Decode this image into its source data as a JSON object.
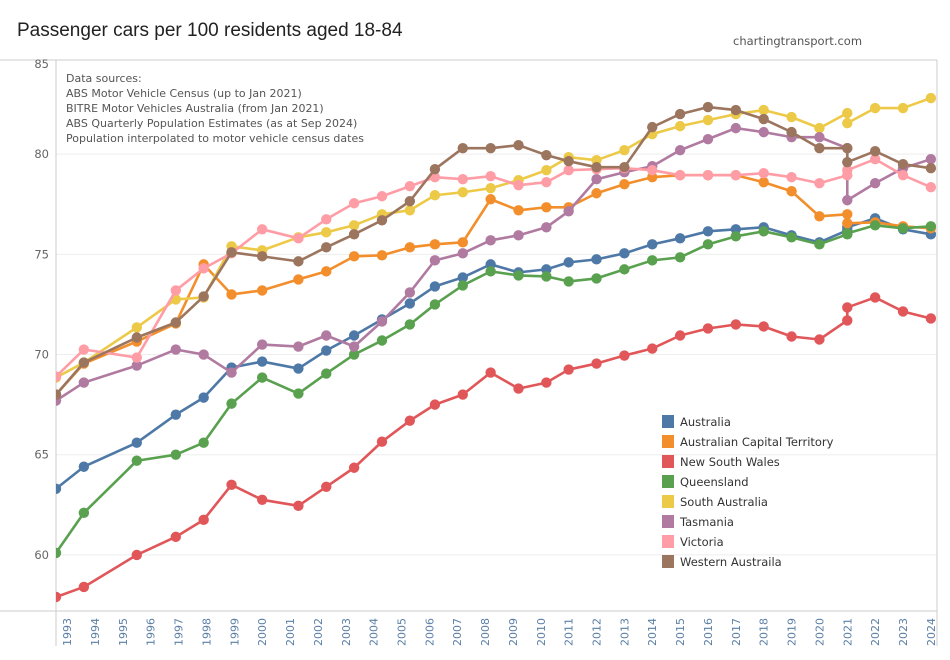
{
  "title": "Passenger cars per 100 residents aged 18-84",
  "site": "chartingtransport.com",
  "notes": [
    "Data sources:",
    "ABS Motor Vehicle Census (up to Jan 2021)",
    "BITRE Motor Vehicles Australia (from Jan 2021)",
    "ABS Quarterly Population Estimates (as at Sep 2024)",
    "Population interpolated to motor vehicle census dates"
  ],
  "chart_data": {
    "type": "line",
    "title": "Passenger cars per 100 residents aged 18-84",
    "xlabel": "",
    "ylabel": "",
    "xlim": [
      1992.6,
      2024.22
    ],
    "ylim": [
      57.2,
      84.7
    ],
    "grid": "horizontal",
    "legend": "bottom-right",
    "y_ticks": [
      60,
      65,
      70,
      75,
      80,
      85
    ],
    "x_ticks": [
      "1993",
      "1994",
      "1995",
      "1996",
      "1997",
      "1998",
      "1999",
      "2000",
      "2001",
      "2002",
      "2003",
      "2004",
      "2005",
      "2006",
      "2007",
      "2008",
      "2009",
      "2010",
      "2011",
      "2012",
      "2013",
      "2014",
      "2015",
      "2016",
      "2017",
      "2018",
      "2019",
      "2020",
      "2021",
      "2022",
      "2023",
      "2024"
    ],
    "x": [
      1992.6,
      1993.6,
      1995.5,
      1996.9,
      1997.9,
      1998.9,
      2000.0,
      2001.3,
      2002.3,
      2003.3,
      2004.3,
      2005.3,
      2006.2,
      2007.2,
      2008.2,
      2009.2,
      2010.2,
      2011.0,
      2012.0,
      2013.0,
      2014.0,
      2015.0,
      2016.0,
      2017.0,
      2018.0,
      2019.0,
      2020.0,
      2021.0,
      2021.0,
      2022.0,
      2023.0,
      2024.0
    ],
    "series": [
      {
        "name": "Australia",
        "color": "#4e79a7",
        "values": [
          63.3,
          64.4,
          65.6,
          67.0,
          67.85,
          69.35,
          69.65,
          69.3,
          70.2,
          70.95,
          71.75,
          72.55,
          73.4,
          73.85,
          74.5,
          74.1,
          74.25,
          74.6,
          74.75,
          75.05,
          75.5,
          75.8,
          76.15,
          76.25,
          76.35,
          75.95,
          75.6,
          76.2,
          76.35,
          76.8,
          76.25,
          76.0
        ]
      },
      {
        "name": "Australian Capital Territory",
        "color": "#f28e2b",
        "values": [
          68.0,
          69.55,
          70.65,
          71.55,
          74.5,
          73.0,
          73.2,
          73.75,
          74.15,
          74.9,
          74.95,
          75.35,
          75.5,
          75.6,
          77.75,
          77.2,
          77.35,
          77.35,
          78.05,
          78.5,
          78.85,
          78.95,
          78.95,
          78.95,
          78.6,
          78.15,
          76.9,
          77.0,
          76.55,
          76.6,
          76.4,
          76.3
        ]
      },
      {
        "name": "New South Wales",
        "color": "#e15759",
        "values": [
          57.9,
          58.4,
          60.0,
          60.9,
          61.75,
          63.5,
          62.75,
          62.45,
          63.4,
          64.35,
          65.65,
          66.7,
          67.5,
          68.0,
          69.1,
          68.3,
          68.6,
          69.25,
          69.55,
          69.95,
          70.3,
          70.95,
          71.3,
          71.5,
          71.4,
          70.9,
          70.75,
          71.7,
          72.35,
          72.85,
          72.15,
          71.8
        ]
      },
      {
        "name": "Queensland",
        "color": "#59a14f",
        "values": [
          60.1,
          62.1,
          64.7,
          65.0,
          65.6,
          67.55,
          68.85,
          68.05,
          69.05,
          70.0,
          70.7,
          71.5,
          72.5,
          73.45,
          74.15,
          73.95,
          73.9,
          73.65,
          73.8,
          74.25,
          74.7,
          74.85,
          75.5,
          75.9,
          76.15,
          75.85,
          75.5,
          76.0,
          76.05,
          76.45,
          76.3,
          76.4
        ]
      },
      {
        "name": "South Australia",
        "color": "#edc948",
        "values": [
          68.85,
          69.6,
          71.35,
          72.75,
          72.85,
          75.4,
          75.2,
          75.85,
          76.1,
          76.45,
          77.0,
          77.2,
          77.95,
          78.1,
          78.3,
          78.7,
          79.2,
          79.85,
          79.7,
          80.2,
          81.0,
          81.4,
          81.7,
          82.0,
          82.2,
          81.85,
          81.3,
          82.05,
          81.55,
          82.3,
          82.3,
          82.8
        ]
      },
      {
        "name": "Tasmania",
        "color": "#b07aa1",
        "values": [
          67.7,
          68.6,
          69.45,
          70.25,
          70.0,
          69.1,
          70.5,
          70.4,
          70.95,
          70.4,
          71.65,
          73.1,
          74.7,
          75.05,
          75.7,
          75.95,
          76.35,
          77.15,
          78.75,
          79.1,
          79.4,
          80.2,
          80.75,
          81.3,
          81.1,
          80.85,
          80.85,
          80.3,
          77.7,
          78.55,
          79.3,
          79.75
        ]
      },
      {
        "name": "Victoria",
        "color": "#ff9da7",
        "values": [
          68.9,
          70.25,
          69.85,
          73.2,
          74.3,
          75.05,
          76.25,
          75.8,
          76.75,
          77.55,
          77.9,
          78.4,
          78.85,
          78.75,
          78.9,
          78.45,
          78.6,
          79.2,
          79.25,
          79.3,
          79.2,
          78.95,
          78.95,
          78.95,
          79.05,
          78.85,
          78.55,
          78.95,
          79.2,
          79.75,
          78.95,
          78.35
        ]
      },
      {
        "name": "Western Austraila",
        "color": "#9c755f",
        "values": [
          68.0,
          69.6,
          70.85,
          71.6,
          72.9,
          75.1,
          74.9,
          74.65,
          75.35,
          76.0,
          76.7,
          77.65,
          79.25,
          80.3,
          80.3,
          80.45,
          79.95,
          79.65,
          79.35,
          79.35,
          81.35,
          82.0,
          82.35,
          82.2,
          81.75,
          81.1,
          80.3,
          80.3,
          79.6,
          80.15,
          79.5,
          79.3
        ]
      }
    ]
  }
}
